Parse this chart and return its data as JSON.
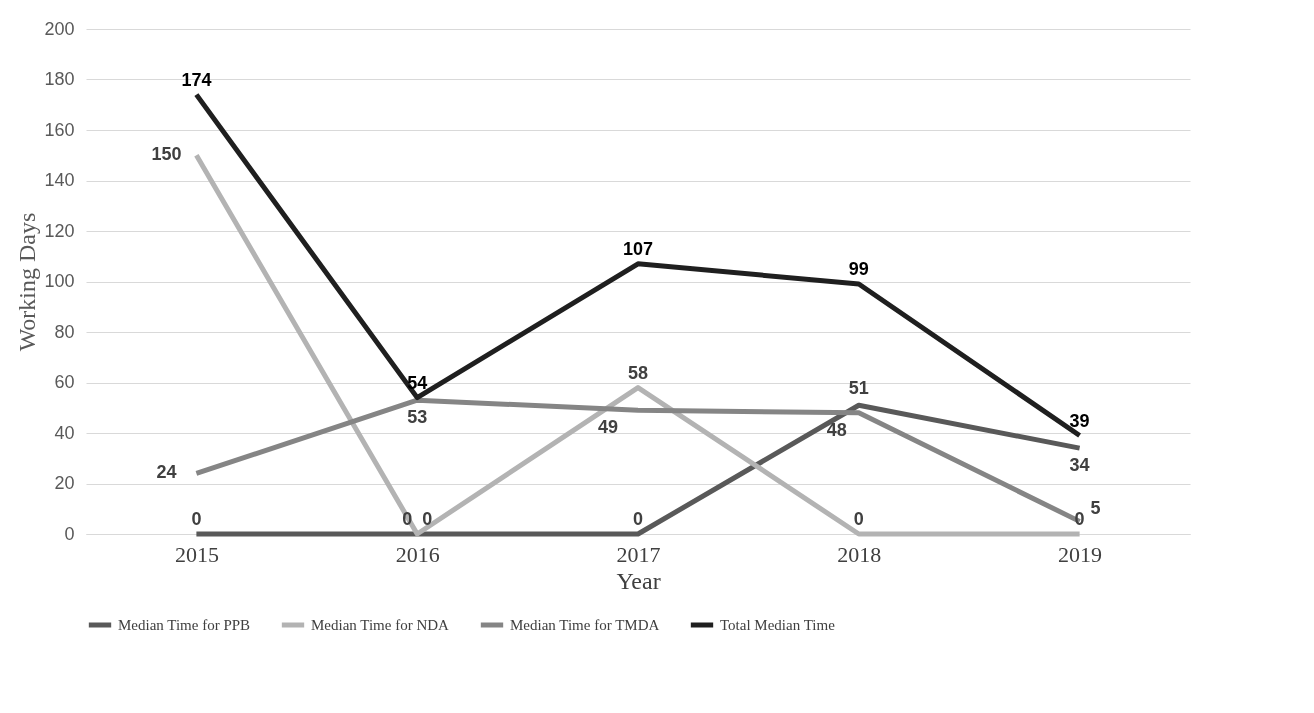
{
  "chart_data": {
    "type": "line",
    "xlabel": "Year",
    "ylabel": "Working Days",
    "categories": [
      "2015",
      "2016",
      "2017",
      "2018",
      "2019"
    ],
    "series": [
      {
        "name": "Median Time for PPB",
        "color": "#595959",
        "values": [
          0,
          0,
          0,
          51,
          34
        ]
      },
      {
        "name": "Median Time for NDA",
        "color": "#b3b3b3",
        "values": [
          150,
          0,
          58,
          0,
          0
        ]
      },
      {
        "name": "Median Time for TMDA",
        "color": "#858585",
        "values": [
          24,
          53,
          49,
          48,
          5
        ]
      },
      {
        "name": "Total Median Time",
        "color": "#1f1f1f",
        "values": [
          174,
          54,
          107,
          99,
          39
        ]
      }
    ],
    "ylim": [
      0,
      200
    ],
    "yticks": [
      0,
      20,
      40,
      60,
      80,
      100,
      120,
      140,
      160,
      180,
      200
    ],
    "grid": "y",
    "legend": "bottom",
    "data_labels": true,
    "marker": "none",
    "line_style": "solid"
  }
}
